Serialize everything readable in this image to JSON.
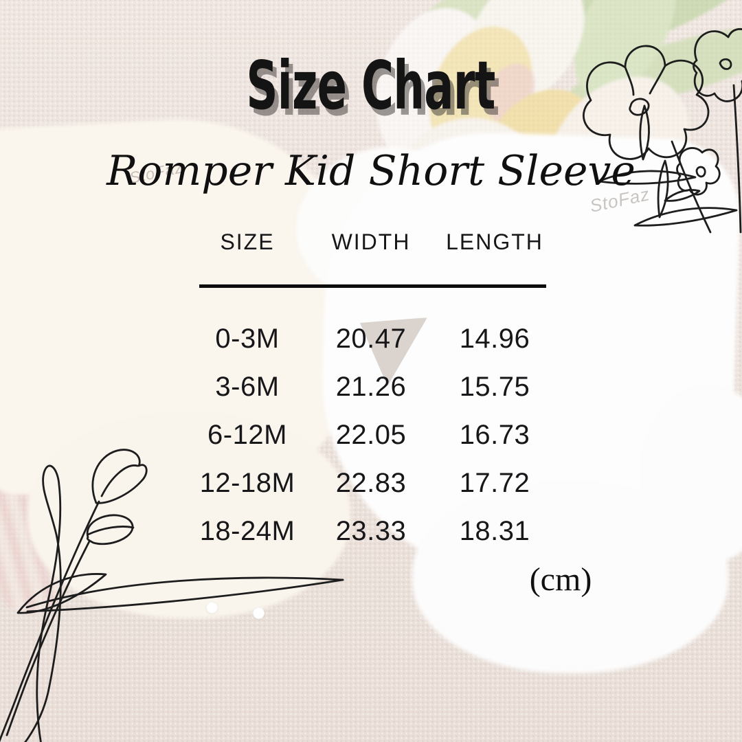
{
  "page": {
    "title": "Size Chart",
    "subtitle": "Romper Kid Short Sleeve",
    "unit_label": "(cm)",
    "watermark": "StoFaz"
  },
  "colors": {
    "background_linen": "#ece3dd",
    "text": "#141414",
    "title_shadow": "#4a4642",
    "romper_cream": "#faf5ed",
    "romper_white": "#fdfdfd",
    "line_art": "#1d1d1d",
    "tulip_yellow": "#f3dd8e",
    "leaf_green": "#c6dcaa",
    "stripe_pink": "#ecc9c7"
  },
  "chart_data": {
    "type": "table",
    "title": "Size Chart",
    "subtitle": "Romper Kid Short Sleeve",
    "unit": "cm",
    "columns": [
      "SIZE",
      "WIDTH",
      "LENGTH"
    ],
    "rows": [
      [
        "0-3M",
        "20.47",
        "14.96"
      ],
      [
        "3-6M",
        "21.26",
        "15.75"
      ],
      [
        "6-12M",
        "22.05",
        "16.73"
      ],
      [
        "12-18M",
        "22.83",
        "17.72"
      ],
      [
        "18-24M",
        "23.33",
        "18.31"
      ]
    ]
  }
}
